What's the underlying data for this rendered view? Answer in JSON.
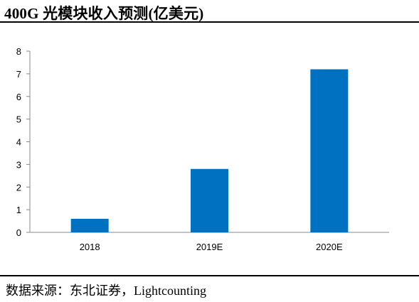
{
  "header": {
    "title": "400G 光模块收入预测(亿美元)"
  },
  "footer": {
    "source": "数据来源：东北证券，Lightcounting"
  },
  "chart_data": {
    "type": "bar",
    "title": "400G 光模块收入预测(亿美元)",
    "xlabel": "",
    "ylabel": "",
    "categories": [
      "2018",
      "2019E",
      "2020E"
    ],
    "values": [
      0.6,
      2.8,
      7.2
    ],
    "ylim": [
      0,
      8
    ],
    "yticks": [
      0,
      1,
      2,
      3,
      4,
      5,
      6,
      7,
      8
    ],
    "bar_color": "#0070C0",
    "grid": false,
    "legend": "none"
  }
}
